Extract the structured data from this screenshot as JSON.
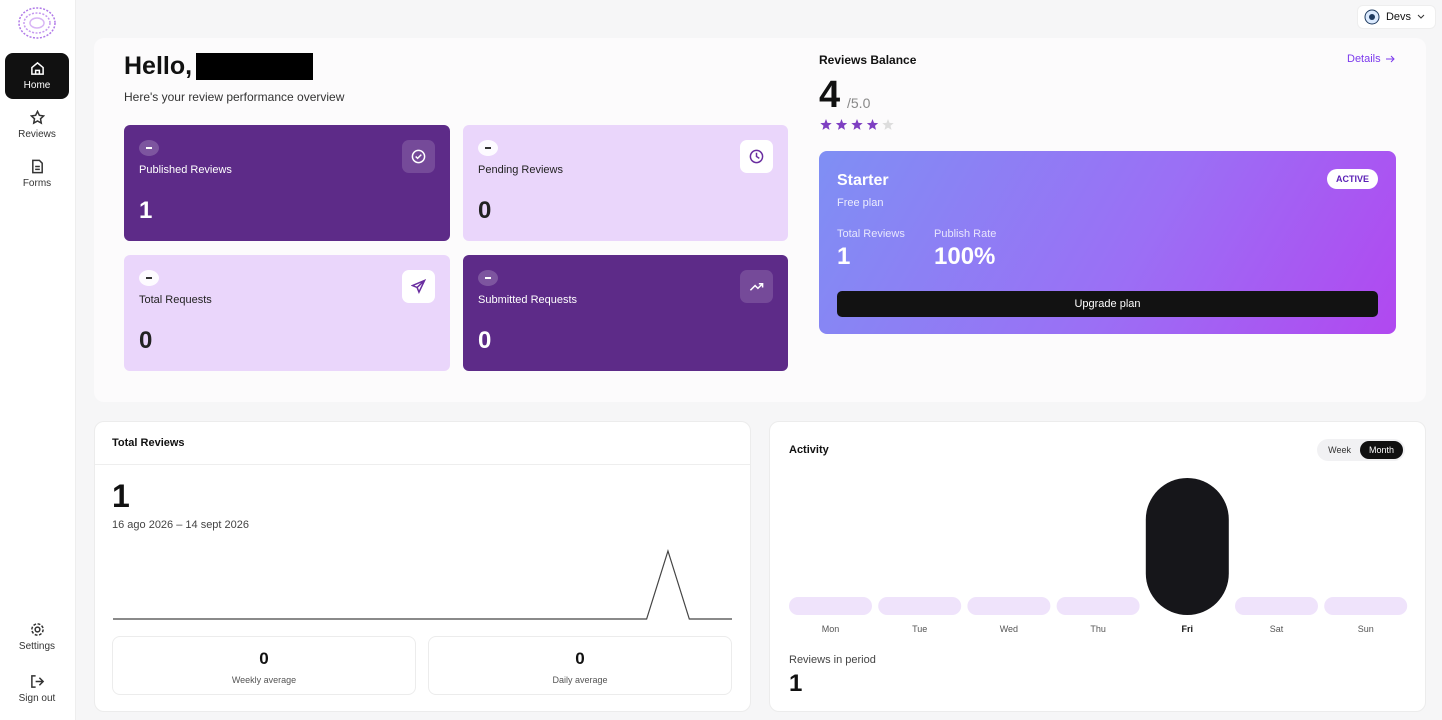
{
  "sidebar": {
    "nav": [
      "Home",
      "Reviews",
      "Forms"
    ],
    "active": "Home",
    "bottom": [
      "Settings",
      "Sign out"
    ]
  },
  "header": {
    "workspace": "Devs"
  },
  "greeting": {
    "title": "Hello,",
    "subtitle": "Here's your review performance overview"
  },
  "stats": [
    {
      "label": "Published Reviews",
      "value": 1
    },
    {
      "label": "Pending Reviews",
      "value": 0
    },
    {
      "label": "Total Requests",
      "value": 0
    },
    {
      "label": "Submitted Requests",
      "value": 0
    }
  ],
  "balance": {
    "title": "Reviews Balance",
    "link": "Details",
    "rating": 4,
    "max_label": "/5.0",
    "stars": 5
  },
  "plan": {
    "name": "Starter",
    "type": "Free plan",
    "badge": "ACTIVE",
    "metrics": [
      {
        "label": "Total Reviews",
        "value": "1"
      },
      {
        "label": "Publish Rate",
        "value": "100%"
      }
    ],
    "button": "Upgrade plan"
  },
  "total_reviews": {
    "title": "Total Reviews",
    "value": 1,
    "range": "16 ago 2026 – 14 sept 2026",
    "series": [
      0,
      0,
      0,
      0,
      0,
      0,
      0,
      0,
      0,
      0,
      0,
      0,
      0,
      0,
      0,
      0,
      0,
      0,
      0,
      0,
      0,
      0,
      0,
      0,
      0,
      0,
      1,
      0,
      0,
      0
    ],
    "averages": [
      {
        "value": 0,
        "label": "Weekly average"
      },
      {
        "value": 0,
        "label": "Daily average"
      }
    ]
  },
  "activity": {
    "title": "Activity",
    "toggle": [
      "Week",
      "Month"
    ],
    "selected": "Month",
    "days": [
      "Mon",
      "Tue",
      "Wed",
      "Thu",
      "Fri",
      "Sat",
      "Sun"
    ],
    "values": [
      0,
      0,
      0,
      0,
      1,
      0,
      0
    ],
    "footer_label": "Reviews in period",
    "footer_value": 1
  }
}
